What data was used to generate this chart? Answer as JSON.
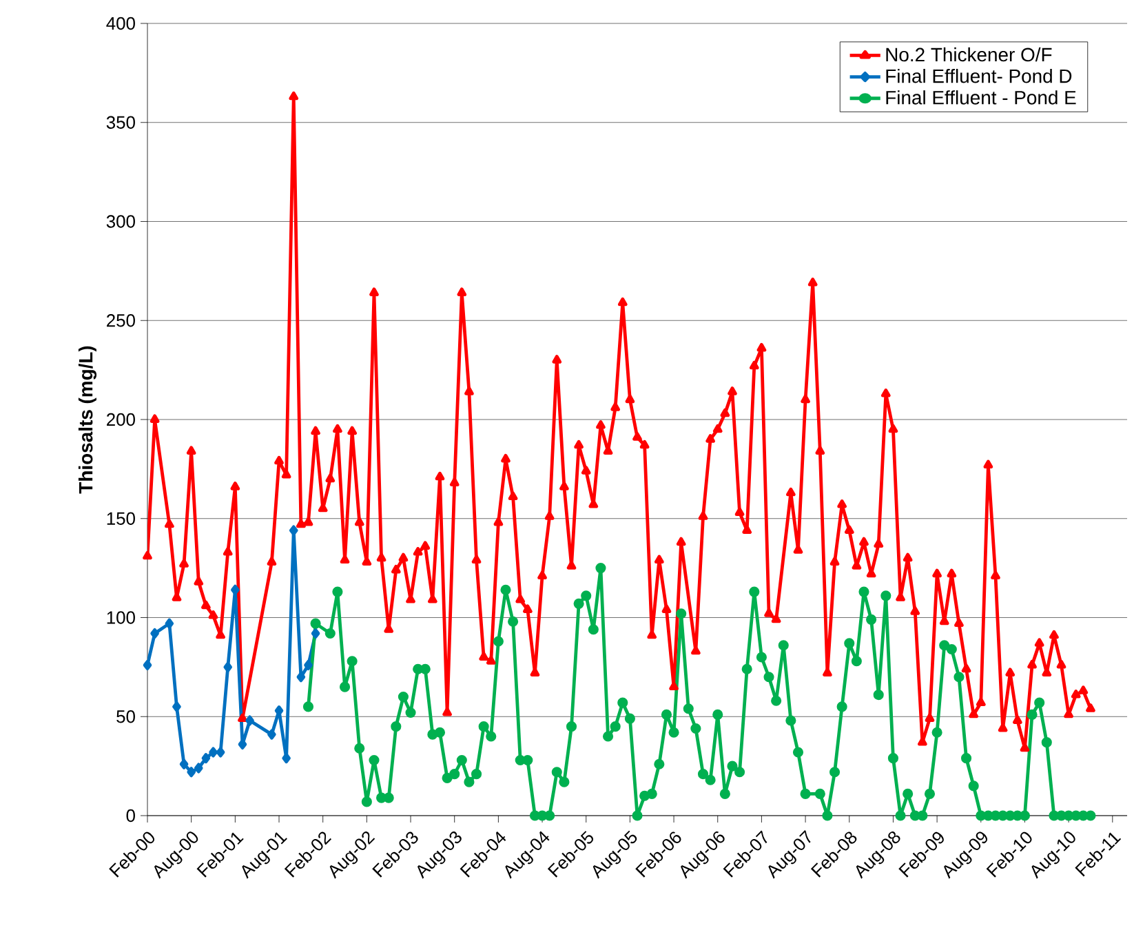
{
  "chart_data": {
    "type": "line",
    "ylabel": "Thiosalts (mg/L)",
    "ylim": [
      0,
      400
    ],
    "yticks": [
      0,
      50,
      100,
      150,
      200,
      250,
      300,
      350,
      400
    ],
    "xlim": [
      "2000-02",
      "2011-04"
    ],
    "xticks": [
      {
        "value": "2000-02",
        "label": "Feb-00"
      },
      {
        "value": "2000-08",
        "label": "Aug-00"
      },
      {
        "value": "2001-02",
        "label": "Feb-01"
      },
      {
        "value": "2001-08",
        "label": "Aug-01"
      },
      {
        "value": "2002-02",
        "label": "Feb-02"
      },
      {
        "value": "2002-08",
        "label": "Aug-02"
      },
      {
        "value": "2003-02",
        "label": "Feb-03"
      },
      {
        "value": "2003-08",
        "label": "Aug-03"
      },
      {
        "value": "2004-02",
        "label": "Feb-04"
      },
      {
        "value": "2004-08",
        "label": "Aug-04"
      },
      {
        "value": "2005-02",
        "label": "Feb-05"
      },
      {
        "value": "2005-08",
        "label": "Aug-05"
      },
      {
        "value": "2006-02",
        "label": "Feb-06"
      },
      {
        "value": "2006-08",
        "label": "Aug-06"
      },
      {
        "value": "2007-02",
        "label": "Feb-07"
      },
      {
        "value": "2007-08",
        "label": "Aug-07"
      },
      {
        "value": "2008-02",
        "label": "Feb-08"
      },
      {
        "value": "2008-08",
        "label": "Aug-08"
      },
      {
        "value": "2009-02",
        "label": "Feb-09"
      },
      {
        "value": "2009-08",
        "label": "Aug-09"
      },
      {
        "value": "2010-02",
        "label": "Feb-10"
      },
      {
        "value": "2010-08",
        "label": "Aug-10"
      },
      {
        "value": "2011-02",
        "label": "Feb-11"
      }
    ],
    "grid": "y",
    "legend": "top right",
    "line_style": "solid",
    "series": [
      {
        "name": "No.2 Thickener O/F",
        "color": "#ff0000",
        "marker": "triangle",
        "x": [
          "2000-02",
          "2000-03",
          "2000-05",
          "2000-06",
          "2000-07",
          "2000-08",
          "2000-09",
          "2000-10",
          "2000-11",
          "2000-12",
          "2001-01",
          "2001-02",
          "2001-03",
          "2001-07",
          "2001-08",
          "2001-09",
          "2001-10",
          "2001-11",
          "2001-12",
          "2002-01",
          "2002-02",
          "2002-03",
          "2002-04",
          "2002-05",
          "2002-06",
          "2002-07",
          "2002-08",
          "2002-09",
          "2002-10",
          "2002-11",
          "2002-12",
          "2003-01",
          "2003-02",
          "2003-03",
          "2003-04",
          "2003-05",
          "2003-06",
          "2003-07",
          "2003-08",
          "2003-09",
          "2003-10",
          "2003-11",
          "2003-12",
          "2004-01",
          "2004-02",
          "2004-03",
          "2004-04",
          "2004-05",
          "2004-06",
          "2004-07",
          "2004-08",
          "2004-09",
          "2004-10",
          "2004-11",
          "2004-12",
          "2005-01",
          "2005-02",
          "2005-03",
          "2005-04",
          "2005-05",
          "2005-06",
          "2005-07",
          "2005-08",
          "2005-09",
          "2005-10",
          "2005-11",
          "2005-12",
          "2006-01",
          "2006-02",
          "2006-03",
          "2006-05",
          "2006-06",
          "2006-07",
          "2006-08",
          "2006-09",
          "2006-10",
          "2006-11",
          "2006-12",
          "2007-01",
          "2007-02",
          "2007-03",
          "2007-04",
          "2007-06",
          "2007-07",
          "2007-08",
          "2007-09",
          "2007-10",
          "2007-11",
          "2007-12",
          "2008-01",
          "2008-02",
          "2008-03",
          "2008-04",
          "2008-05",
          "2008-06",
          "2008-07",
          "2008-08",
          "2008-09",
          "2008-10",
          "2008-11",
          "2008-12",
          "2009-01",
          "2009-02",
          "2009-03",
          "2009-04",
          "2009-05",
          "2009-06",
          "2009-07",
          "2009-08",
          "2009-09",
          "2009-10",
          "2009-11",
          "2009-12",
          "2010-01",
          "2010-02",
          "2010-03",
          "2010-04",
          "2010-05",
          "2010-06",
          "2010-07",
          "2010-08",
          "2010-09",
          "2010-10",
          "2010-11"
        ],
        "values": [
          131,
          200,
          147,
          110,
          127,
          184,
          118,
          106,
          101,
          91,
          133,
          166,
          49,
          128,
          179,
          172,
          363,
          147,
          148,
          194,
          155,
          170,
          195,
          129,
          194,
          148,
          128,
          264,
          130,
          94,
          124,
          130,
          109,
          133,
          136,
          109,
          171,
          52,
          168,
          264,
          214,
          129,
          80,
          78,
          148,
          180,
          161,
          109,
          104,
          72,
          121,
          151,
          230,
          166,
          126,
          187,
          174,
          157,
          197,
          184,
          206,
          259,
          210,
          191,
          187,
          91,
          129,
          104,
          65,
          138,
          83,
          151,
          190,
          195,
          203,
          214,
          153,
          144,
          227,
          236,
          102,
          99,
          163,
          134,
          210,
          269,
          184,
          72,
          128,
          157,
          144,
          126,
          138,
          122,
          137,
          213,
          195,
          110,
          130,
          103,
          37,
          49,
          122,
          98,
          122,
          97,
          74,
          51,
          57,
          177,
          121,
          44,
          72,
          48,
          34,
          76,
          87,
          72,
          91,
          76,
          51,
          61,
          63,
          54
        ]
      },
      {
        "name": "Final Effluent- Pond D",
        "color": "#0070c0",
        "marker": "diamond",
        "x": [
          "2000-02",
          "2000-03",
          "2000-05",
          "2000-06",
          "2000-07",
          "2000-08",
          "2000-09",
          "2000-10",
          "2000-11",
          "2000-12",
          "2001-01",
          "2001-02",
          "2001-03",
          "2001-04",
          "2001-07",
          "2001-08",
          "2001-09",
          "2001-10",
          "2001-11",
          "2001-12",
          "2002-01"
        ],
        "values": [
          76,
          92,
          97,
          55,
          26,
          22,
          24,
          29,
          32,
          32,
          75,
          114,
          36,
          48,
          41,
          53,
          29,
          144,
          70,
          76,
          92
        ]
      },
      {
        "name": "Final Effluent - Pond E",
        "color": "#00b050",
        "marker": "circle",
        "x": [
          "2001-12",
          "2002-01",
          "2002-03",
          "2002-04",
          "2002-05",
          "2002-06",
          "2002-07",
          "2002-08",
          "2002-09",
          "2002-10",
          "2002-11",
          "2002-12",
          "2003-01",
          "2003-02",
          "2003-03",
          "2003-04",
          "2003-05",
          "2003-06",
          "2003-07",
          "2003-08",
          "2003-09",
          "2003-10",
          "2003-11",
          "2003-12",
          "2004-01",
          "2004-02",
          "2004-03",
          "2004-04",
          "2004-05",
          "2004-06",
          "2004-07",
          "2004-08",
          "2004-09",
          "2004-10",
          "2004-11",
          "2004-12",
          "2005-01",
          "2005-02",
          "2005-03",
          "2005-04",
          "2005-05",
          "2005-06",
          "2005-07",
          "2005-08",
          "2005-09",
          "2005-10",
          "2005-11",
          "2005-12",
          "2006-01",
          "2006-02",
          "2006-03",
          "2006-04",
          "2006-05",
          "2006-06",
          "2006-07",
          "2006-08",
          "2006-09",
          "2006-10",
          "2006-11",
          "2006-12",
          "2007-01",
          "2007-02",
          "2007-03",
          "2007-04",
          "2007-05",
          "2007-06",
          "2007-07",
          "2007-08",
          "2007-10",
          "2007-11",
          "2007-12",
          "2008-01",
          "2008-02",
          "2008-03",
          "2008-04",
          "2008-05",
          "2008-06",
          "2008-07",
          "2008-08",
          "2008-09",
          "2008-10",
          "2008-11",
          "2008-12",
          "2009-01",
          "2009-02",
          "2009-03",
          "2009-04",
          "2009-05",
          "2009-06",
          "2009-07",
          "2009-08",
          "2009-09",
          "2009-10",
          "2009-11",
          "2009-12",
          "2010-01",
          "2010-02",
          "2010-03",
          "2010-04",
          "2010-05",
          "2010-06",
          "2010-07",
          "2010-08",
          "2010-09",
          "2010-10",
          "2010-11"
        ],
        "values": [
          55,
          97,
          92,
          113,
          65,
          78,
          34,
          7,
          28,
          9,
          9,
          45,
          60,
          52,
          74,
          74,
          41,
          42,
          19,
          21,
          28,
          17,
          21,
          45,
          40,
          88,
          114,
          98,
          28,
          28,
          0,
          0,
          0,
          22,
          17,
          45,
          107,
          111,
          94,
          125,
          40,
          45,
          57,
          49,
          0,
          10,
          11,
          26,
          51,
          42,
          102,
          54,
          44,
          21,
          18,
          51,
          11,
          25,
          22,
          74,
          113,
          80,
          70,
          58,
          86,
          48,
          32,
          11,
          11,
          0,
          22,
          55,
          87,
          78,
          113,
          99,
          61,
          111,
          29,
          0,
          11,
          0,
          0,
          11,
          42,
          86,
          84,
          70,
          29,
          15,
          0,
          0,
          0,
          0,
          0,
          0,
          0,
          51,
          57,
          37,
          0,
          0,
          0,
          0,
          0,
          0
        ]
      }
    ]
  }
}
